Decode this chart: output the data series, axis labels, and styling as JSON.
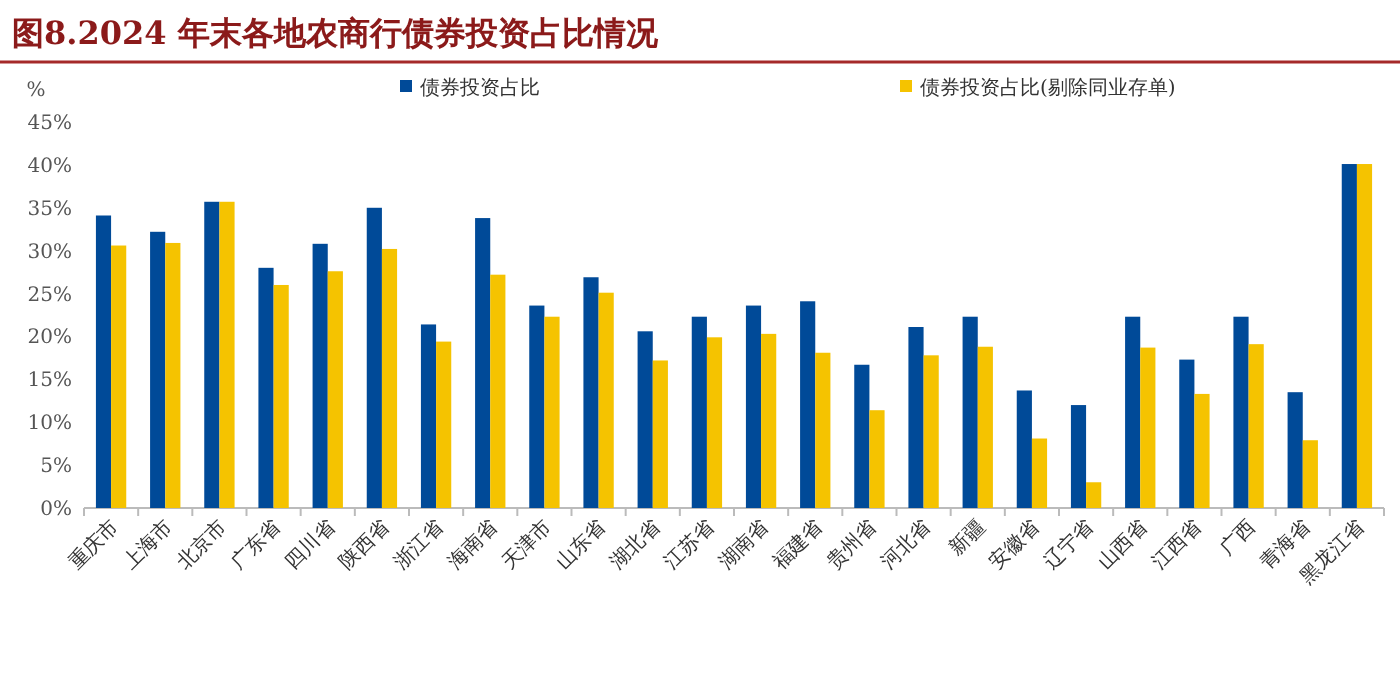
{
  "chart_data": {
    "type": "bar",
    "title": "图8.2024 年末各地农商行债券投资占比情况",
    "ylabel": "%",
    "categories": [
      "重庆市",
      "上海市",
      "北京市",
      "广东省",
      "四川省",
      "陕西省",
      "浙江省",
      "海南省",
      "天津市",
      "山东省",
      "湖北省",
      "江苏省",
      "湖南省",
      "福建省",
      "贵州省",
      "河北省",
      "新疆",
      "安徽省",
      "辽宁省",
      "山西省",
      "江西省",
      "广西",
      "青海省",
      "黑龙江省"
    ],
    "series": [
      {
        "name": "债券投资占比",
        "color": "#004a98",
        "values": [
          34.1,
          32.2,
          35.7,
          28.0,
          30.8,
          35.0,
          21.4,
          33.8,
          23.6,
          26.9,
          20.6,
          22.3,
          23.6,
          24.1,
          16.7,
          21.1,
          22.3,
          13.7,
          12.0,
          22.3,
          17.3,
          22.3,
          13.5,
          40.1
        ]
      },
      {
        "name": "债券投资占比(剔除同业存单)",
        "color": "#f5c300",
        "values": [
          30.6,
          30.9,
          35.7,
          26.0,
          27.6,
          30.2,
          19.4,
          27.2,
          22.3,
          25.1,
          17.2,
          19.9,
          20.3,
          18.1,
          11.4,
          17.8,
          18.8,
          8.1,
          3.0,
          18.7,
          13.3,
          19.1,
          7.9,
          40.1
        ]
      }
    ],
    "ylim": [
      0,
      45
    ],
    "yticks": [
      {
        "value": 0,
        "label": "0%"
      },
      {
        "value": 5,
        "label": "5%"
      },
      {
        "value": 10,
        "label": "10%"
      },
      {
        "value": 15,
        "label": "15%"
      },
      {
        "value": 20,
        "label": "20%"
      },
      {
        "value": 25,
        "label": "25%"
      },
      {
        "value": 30,
        "label": "30%"
      },
      {
        "value": 35,
        "label": "35%"
      },
      {
        "value": 40,
        "label": "40%"
      },
      {
        "value": 45,
        "label": "45%"
      }
    ],
    "legend": "top"
  }
}
